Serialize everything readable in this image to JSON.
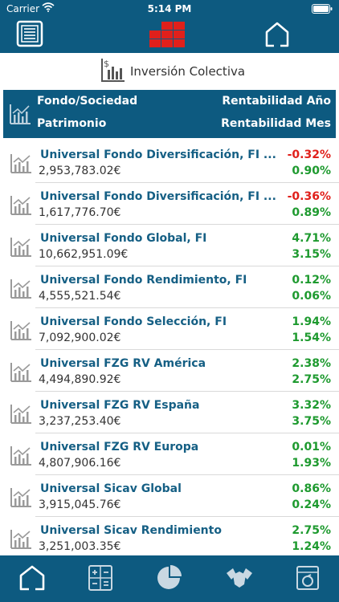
{
  "status_bar": {
    "carrier": "Carrier",
    "time": "5:14 PM"
  },
  "section": {
    "title": "Inversión Colectiva"
  },
  "columns": {
    "fondo": "Fondo/Sociedad",
    "patrimonio": "Patrimonio",
    "rent_ano": "Rentabilidad Año",
    "rent_mes": "Rentabilidad Mes"
  },
  "colors": {
    "positive": "#1e9a2f",
    "negative": "#e0201b",
    "brand": "#0d5a80",
    "logo": "#e0201b"
  },
  "funds": [
    {
      "name": "Universal Fondo Diversificación, FI ...",
      "patrimonio": "2,953,783.02€",
      "rent_ano": "-0.32%",
      "rent_mes": "0.90%"
    },
    {
      "name": "Universal Fondo Diversificación, FI ...",
      "patrimonio": "1,617,776.70€",
      "rent_ano": "-0.36%",
      "rent_mes": "0.89%"
    },
    {
      "name": "Universal Fondo Global, FI",
      "patrimonio": "10,662,951.09€",
      "rent_ano": "4.71%",
      "rent_mes": "3.15%"
    },
    {
      "name": "Universal Fondo Rendimiento, FI",
      "patrimonio": "4,555,521.54€",
      "rent_ano": "0.12%",
      "rent_mes": "0.06%"
    },
    {
      "name": "Universal Fondo Selección, FI",
      "patrimonio": "7,092,900.02€",
      "rent_ano": "1.94%",
      "rent_mes": "1.54%"
    },
    {
      "name": "Universal FZG RV América",
      "patrimonio": "4,494,890.92€",
      "rent_ano": "2.38%",
      "rent_mes": "2.75%"
    },
    {
      "name": "Universal FZG RV España",
      "patrimonio": "3,237,253.40€",
      "rent_ano": "3.32%",
      "rent_mes": "3.75%"
    },
    {
      "name": "Universal FZG RV Europa",
      "patrimonio": "4,807,906.16€",
      "rent_ano": "0.01%",
      "rent_mes": "1.93%"
    },
    {
      "name": "Universal Sicav Global",
      "patrimonio": "3,915,045.76€",
      "rent_ano": "0.86%",
      "rent_mes": "0.24%"
    },
    {
      "name": "Universal Sicav Rendimiento",
      "patrimonio": "3,251,003.35€",
      "rent_ano": "2.75%",
      "rent_mes": "1.24%"
    }
  ],
  "tabs": [
    {
      "icon": "home-icon",
      "active": true
    },
    {
      "icon": "calculator-icon",
      "active": false
    },
    {
      "icon": "pie-chart-icon",
      "active": false
    },
    {
      "icon": "handshake-icon",
      "active": false
    },
    {
      "icon": "document-icon",
      "active": false
    }
  ]
}
